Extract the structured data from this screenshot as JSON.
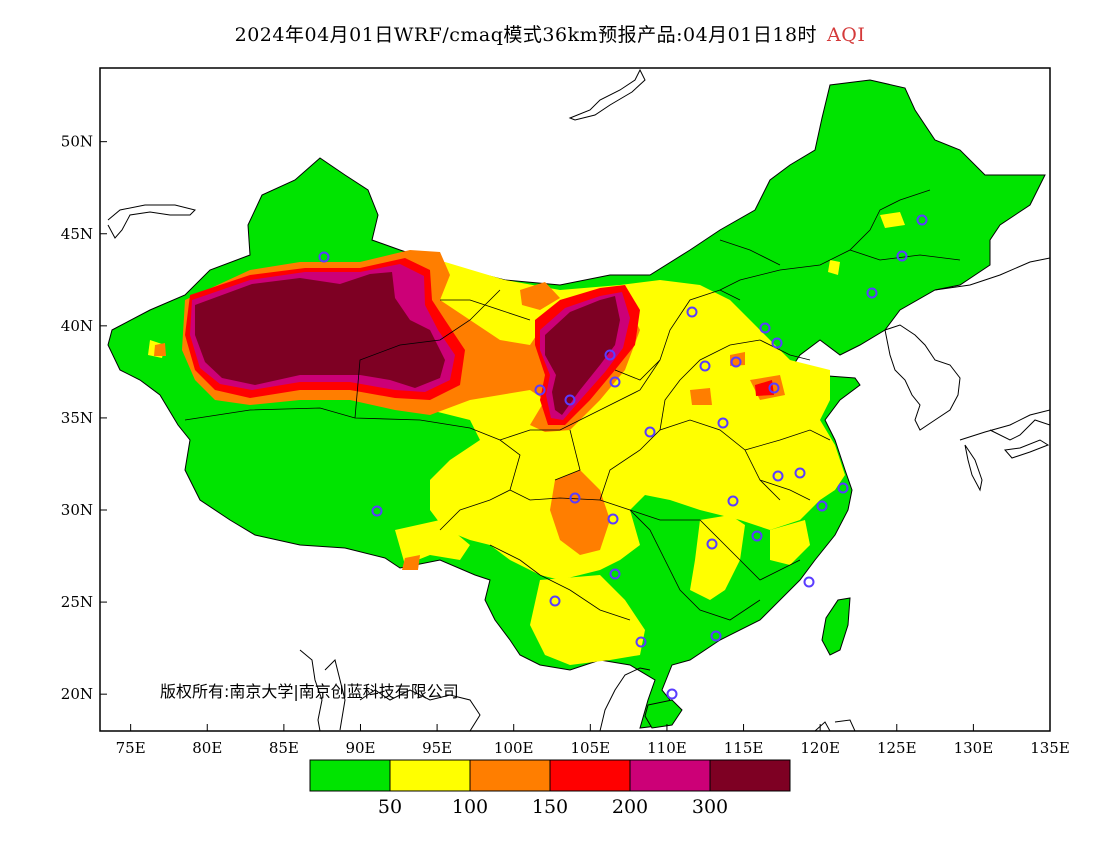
{
  "title": {
    "main": "2024年04月01日WRF/cmaq模式36km预报产品:04月01日18时",
    "variable": "AQI"
  },
  "x_axis": {
    "ticks": [
      "75E",
      "80E",
      "85E",
      "90E",
      "95E",
      "100E",
      "105E",
      "110E",
      "115E",
      "120E",
      "125E",
      "130E",
      "135E"
    ],
    "range": [
      73,
      135
    ]
  },
  "y_axis": {
    "ticks": [
      "20N",
      "25N",
      "30N",
      "35N",
      "40N",
      "45N",
      "50N"
    ],
    "range": [
      18,
      54
    ]
  },
  "copyright": "版权所有:南京大学|南京创蓝科技有限公司",
  "legend": {
    "colors": [
      "#00e400",
      "#ffff00",
      "#ff7e00",
      "#ff0000",
      "#cc0077",
      "#7e0023"
    ],
    "labels": [
      "50",
      "100",
      "150",
      "200",
      "300"
    ]
  }
}
